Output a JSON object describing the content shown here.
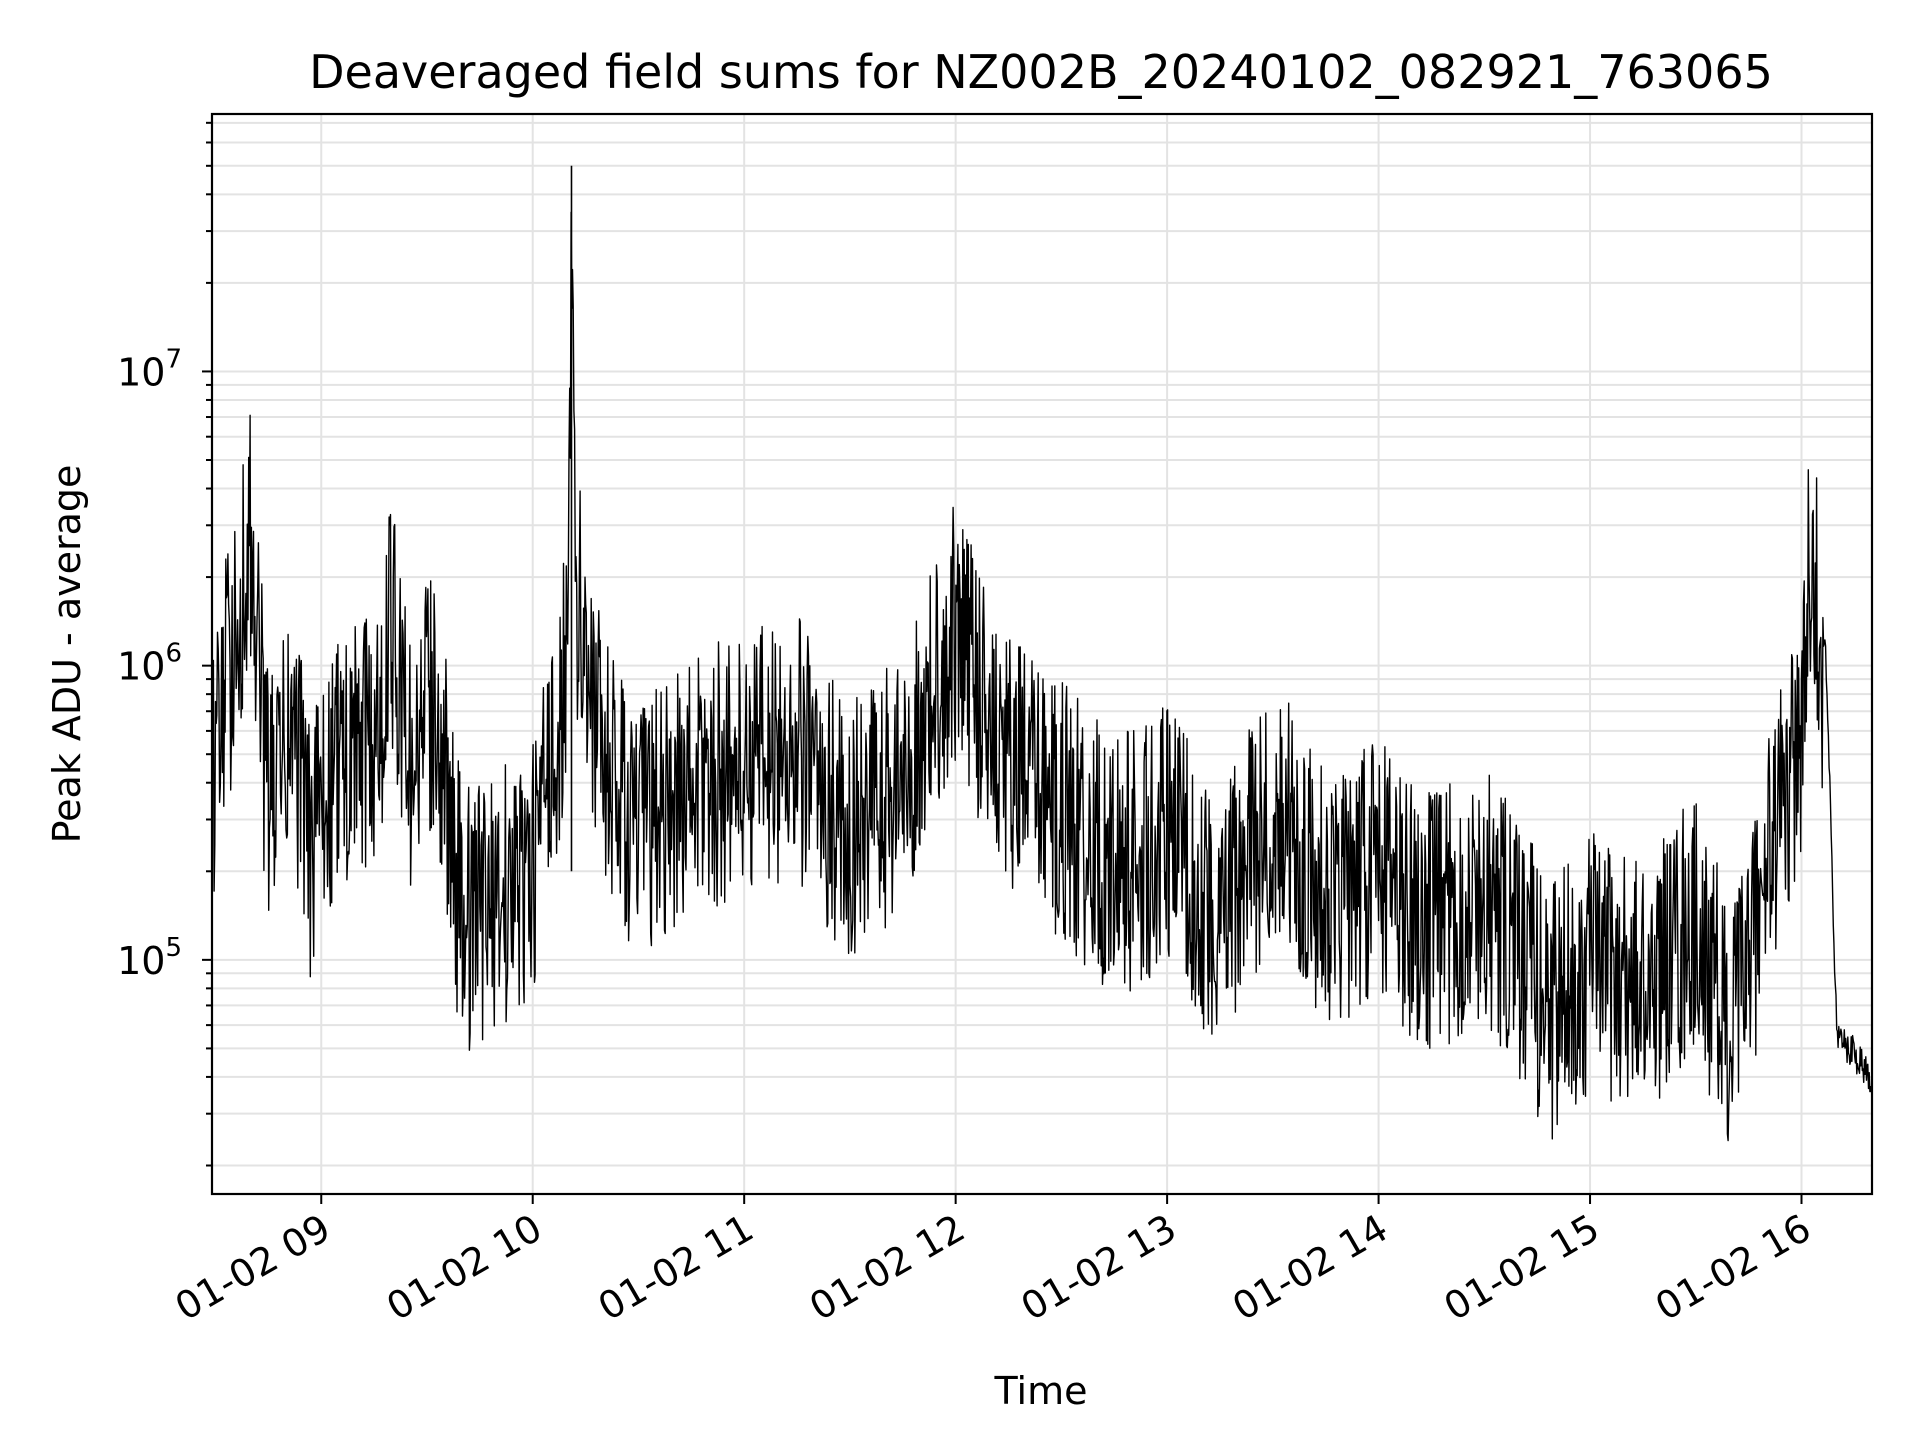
{
  "chart_data": {
    "type": "line",
    "title": "Deaveraged field sums for NZ002B_20240102_082921_763065",
    "xlabel": "Time",
    "ylabel": "Peak ADU - average",
    "yscale": "log",
    "ylim": [
      16000,
      75000000
    ],
    "xlim": [
      "2024-01-02 08:29",
      "2024-01-02 16:20"
    ],
    "grid": true,
    "line_color": "#000000",
    "x_ticks": [
      {
        "label": "01-02 09",
        "t": "2024-01-02 09:00"
      },
      {
        "label": "01-02 10",
        "t": "2024-01-02 10:00"
      },
      {
        "label": "01-02 11",
        "t": "2024-01-02 11:00"
      },
      {
        "label": "01-02 12",
        "t": "2024-01-02 12:00"
      },
      {
        "label": "01-02 13",
        "t": "2024-01-02 13:00"
      },
      {
        "label": "01-02 14",
        "t": "2024-01-02 14:00"
      },
      {
        "label": "01-02 15",
        "t": "2024-01-02 15:00"
      },
      {
        "label": "01-02 16",
        "t": "2024-01-02 16:00"
      }
    ],
    "y_ticks": [
      {
        "base": "10",
        "exp": "5",
        "value": 100000
      },
      {
        "base": "10",
        "exp": "6",
        "value": 1000000
      },
      {
        "base": "10",
        "exp": "7",
        "value": 10000000
      }
    ],
    "series": [
      {
        "x": [
          "2024-01-02 08:29",
          "2024-01-02 08:40",
          "2024-01-02 08:45",
          "2024-01-02 08:52",
          "2024-01-02 08:57",
          "2024-01-02 09:05",
          "2024-01-02 09:15",
          "2024-01-02 09:20",
          "2024-01-02 09:25",
          "2024-01-02 09:32",
          "2024-01-02 09:40",
          "2024-01-02 09:50",
          "2024-01-02 10:00",
          "2024-01-02 10:10",
          "2024-01-02 10:11",
          "2024-01-02 10:12",
          "2024-01-02 10:20",
          "2024-01-02 10:30",
          "2024-01-02 10:45",
          "2024-01-02 11:00",
          "2024-01-02 11:15",
          "2024-01-02 11:30",
          "2024-01-02 11:45",
          "2024-01-02 12:00",
          "2024-01-02 12:15",
          "2024-01-02 12:30",
          "2024-01-02 12:45",
          "2024-01-02 13:00",
          "2024-01-02 13:15",
          "2024-01-02 13:30",
          "2024-01-02 13:45",
          "2024-01-02 14:00",
          "2024-01-02 14:15",
          "2024-01-02 14:30",
          "2024-01-02 14:50",
          "2024-01-02 15:00",
          "2024-01-02 15:15",
          "2024-01-02 15:30",
          "2024-01-02 15:40",
          "2024-01-02 15:50",
          "2024-01-02 16:00",
          "2024-01-02 16:03",
          "2024-01-02 16:07",
          "2024-01-02 16:10",
          "2024-01-02 16:14",
          "2024-01-02 16:20"
        ],
        "y": [
          650000,
          4000000,
          500000,
          900000,
          350000,
          700000,
          800000,
          2100000,
          700000,
          1200000,
          200000,
          250000,
          300000,
          1500000,
          50000000,
          3000000,
          700000,
          400000,
          600000,
          700000,
          800000,
          400000,
          600000,
          2000000,
          700000,
          500000,
          300000,
          400000,
          200000,
          500000,
          250000,
          300000,
          200000,
          250000,
          100000,
          150000,
          120000,
          200000,
          80000,
          300000,
          900000,
          4500000,
          1000000,
          55000,
          50000,
          40000
        ]
      }
    ]
  }
}
